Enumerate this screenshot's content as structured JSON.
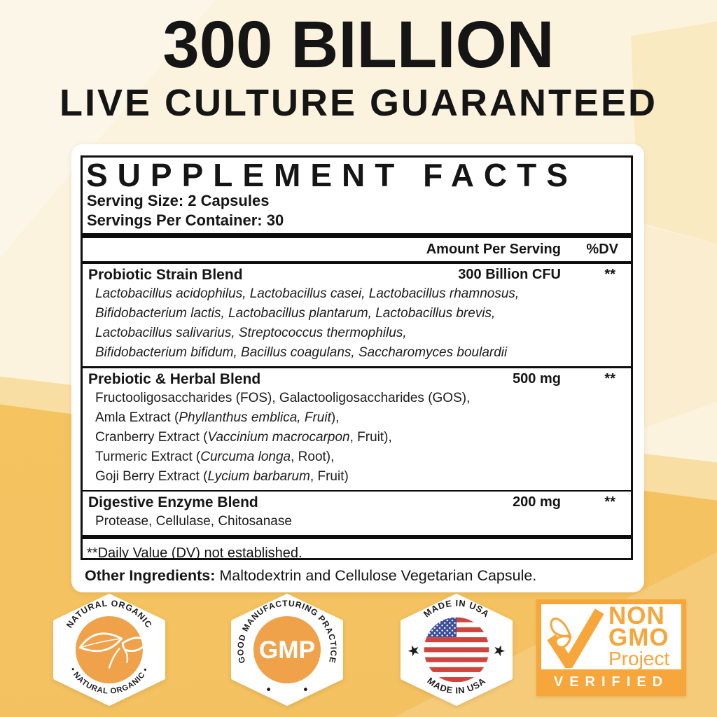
{
  "header": {
    "title": "300 BILLION",
    "subtitle": "LIVE CULTURE GUARANTEED"
  },
  "supplement_facts": {
    "title": "SUPPLEMENT FACTS",
    "serving_size": "Serving Size: 2 Capsules",
    "servings_per_container": "Servings Per Container: 30",
    "amount_header": "Amount Per Serving",
    "dv_header": "%DV",
    "sections": [
      {
        "name": "Probiotic Strain Blend",
        "amount": "300 Billion CFU",
        "dv": "**",
        "details": [
          [
            {
              "t": "Lactobacillus acidophilus, Lactobacillus casei, Lactobacillus rhamnosus,",
              "i": true
            }
          ],
          [
            {
              "t": "Bifidobacterium lactis, Lactobacillus plantarum, Lactobacillus brevis,",
              "i": true
            }
          ],
          [
            {
              "t": "Lactobacillus salivarius, Streptococcus thermophilus,",
              "i": true
            }
          ],
          [
            {
              "t": "Bifidobacterium bifidum, Bacillus coagulans, Saccharomyces boulardii",
              "i": true
            }
          ]
        ]
      },
      {
        "name": "Prebiotic & Herbal Blend",
        "amount": "500 mg",
        "dv": "**",
        "details": [
          [
            {
              "t": "Fructooligosaccharides (FOS), Galactooligosaccharides (GOS),",
              "i": false
            }
          ],
          [
            {
              "t": "Amla Extract (",
              "i": false
            },
            {
              "t": "Phyllanthus emblica, Fruit",
              "i": true
            },
            {
              "t": "),",
              "i": false
            }
          ],
          [
            {
              "t": "Cranberry Extract (",
              "i": false
            },
            {
              "t": "Vaccinium macrocarpon",
              "i": true
            },
            {
              "t": ", Fruit),",
              "i": false
            }
          ],
          [
            {
              "t": "Turmeric Extract (",
              "i": false
            },
            {
              "t": "Curcuma longa",
              "i": true
            },
            {
              "t": ", Root),",
              "i": false
            }
          ],
          [
            {
              "t": "Goji Berry Extract (",
              "i": false
            },
            {
              "t": "Lycium barbarum",
              "i": true
            },
            {
              "t": ", Fruit)",
              "i": false
            }
          ]
        ]
      },
      {
        "name": "Digestive Enzyme Blend",
        "amount": "200 mg",
        "dv": "**",
        "details": [
          [
            {
              "t": "Protease, Cellulase, Chitosanase",
              "i": false
            }
          ]
        ]
      }
    ],
    "footnote": "**Daily Value (DV) not established.",
    "other_ingredients_label": "Other Ingredients:",
    "other_ingredients_text": " Maltodextrin and Cellulose Vegetarian Capsule."
  },
  "badges": {
    "natural_organic": {
      "top_text": "NATURAL ORGANIC",
      "bottom_text": "• NATURAL ORGANIC •"
    },
    "gmp": {
      "arc_text": "GOOD MANUFACTURING PRACTICE",
      "center_text": "GMP"
    },
    "made_in_usa": {
      "top_text": "MADE IN USA",
      "bottom_text": "MADE IN USA",
      "star_icon": "★"
    },
    "non_gmo": {
      "line1": "NON",
      "line2": "GMO",
      "line3": "Project",
      "verified": "VERIFIED"
    }
  },
  "colors": {
    "accent_orange": "#F0A24B",
    "non_gmo_orange": "#F6A63B",
    "flag_red": "#CE453E",
    "flag_blue": "#3C4D9A",
    "background_cream": "#FBF3DE",
    "background_yellow": "#F5C45F",
    "text_black": "#151515"
  }
}
